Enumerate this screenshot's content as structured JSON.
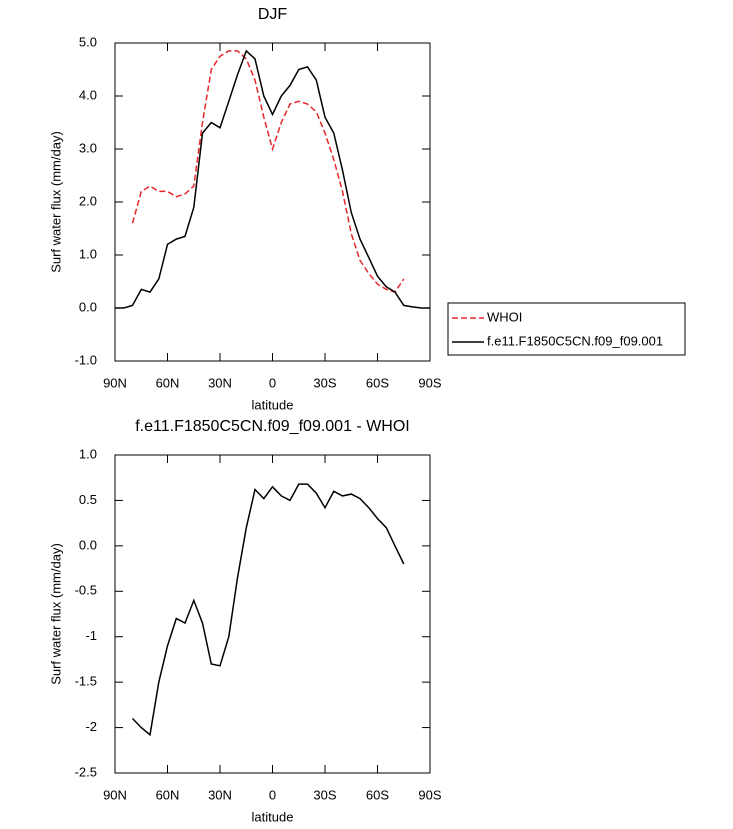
{
  "chart_data": [
    {
      "type": "line",
      "title": "DJF",
      "xlabel": "latitude",
      "ylabel": "Surf water flux (mm/day)",
      "x": [
        90,
        85,
        80,
        75,
        70,
        65,
        60,
        55,
        50,
        45,
        40,
        35,
        30,
        25,
        20,
        15,
        10,
        5,
        0,
        -5,
        -10,
        -15,
        -20,
        -25,
        -30,
        -35,
        -40,
        -45,
        -50,
        -55,
        -60,
        -65,
        -70,
        -75,
        -80,
        -85,
        -90
      ],
      "series": [
        {
          "name": "WHOI",
          "color": "#e8262b",
          "dash": true,
          "values": [
            null,
            null,
            1.6,
            2.2,
            2.3,
            2.2,
            2.2,
            2.1,
            2.15,
            2.3,
            3.5,
            4.5,
            4.75,
            4.85,
            4.85,
            4.7,
            4.3,
            3.6,
            3.0,
            3.5,
            3.85,
            3.9,
            3.85,
            3.7,
            3.3,
            2.8,
            2.2,
            1.4,
            0.9,
            0.65,
            0.45,
            0.35,
            0.3,
            0.55,
            null,
            null,
            null
          ]
        },
        {
          "name": "f.e11.F1850C5CN.f09_f09.001",
          "color": "#000000",
          "dash": false,
          "values": [
            0,
            0,
            0.05,
            0.35,
            0.3,
            0.55,
            1.2,
            1.3,
            1.35,
            1.9,
            3.3,
            3.5,
            3.4,
            3.9,
            4.4,
            4.85,
            4.7,
            4.0,
            3.65,
            4.0,
            4.2,
            4.5,
            4.55,
            4.3,
            3.6,
            3.3,
            2.6,
            1.8,
            1.3,
            0.95,
            0.6,
            0.4,
            0.3,
            0.05,
            0.02,
            0,
            0
          ]
        }
      ],
      "xlim": [
        90,
        -90
      ],
      "xticks": [
        {
          "value": 90,
          "label": "90N"
        },
        {
          "value": 60,
          "label": "60N"
        },
        {
          "value": 30,
          "label": "30N"
        },
        0,
        {
          "value": -30,
          "label": "30S"
        },
        {
          "value": -60,
          "label": "60S"
        },
        {
          "value": -90,
          "label": "90S"
        }
      ],
      "ylim": [
        -1,
        5
      ],
      "yticks": [
        {
          "value": -1,
          "label": "-1.0"
        },
        {
          "value": 0,
          "label": "0.0"
        },
        {
          "value": 1,
          "label": "1.0"
        },
        {
          "value": 2,
          "label": "2.0"
        },
        {
          "value": 3,
          "label": "3.0"
        },
        {
          "value": 4,
          "label": "4.0"
        },
        {
          "value": 5,
          "label": "5.0"
        }
      ],
      "legend": "right"
    },
    {
      "type": "line",
      "title": "f.e11.F1850C5CN.f09_f09.001 - WHOI",
      "xlabel": "latitude",
      "ylabel": "Surf water flux (mm/day)",
      "x": [
        90,
        85,
        80,
        75,
        70,
        65,
        60,
        55,
        50,
        45,
        40,
        35,
        30,
        25,
        20,
        15,
        10,
        5,
        0,
        -5,
        -10,
        -15,
        -20,
        -25,
        -30,
        -35,
        -40,
        -45,
        -50,
        -55,
        -60,
        -65,
        -70,
        -75,
        -80,
        -85,
        -90
      ],
      "color": "#000000",
      "values": [
        null,
        null,
        -1.9,
        -2.0,
        -2.08,
        -1.5,
        -1.1,
        -0.8,
        -0.85,
        -0.6,
        -0.85,
        -1.3,
        -1.32,
        -1.0,
        -0.35,
        0.2,
        0.62,
        0.52,
        0.65,
        0.55,
        0.5,
        0.68,
        0.68,
        0.58,
        0.42,
        0.6,
        0.55,
        0.57,
        0.52,
        0.42,
        0.3,
        0.2,
        0.0,
        -0.2,
        null,
        null,
        null
      ],
      "xlim": [
        90,
        -90
      ],
      "xticks": [
        {
          "value": 90,
          "label": "90N"
        },
        {
          "value": 60,
          "label": "60N"
        },
        {
          "value": 30,
          "label": "30N"
        },
        0,
        {
          "value": -30,
          "label": "30S"
        },
        {
          "value": -60,
          "label": "60S"
        },
        {
          "value": -90,
          "label": "90S"
        }
      ],
      "ylim": [
        -2.5,
        1
      ],
      "yticks": [
        -2.5,
        -2,
        -1.5,
        -1,
        -0.5,
        {
          "value": 0,
          "label": "0.0"
        },
        0.5,
        {
          "value": 1,
          "label": "1.0"
        }
      ]
    }
  ]
}
